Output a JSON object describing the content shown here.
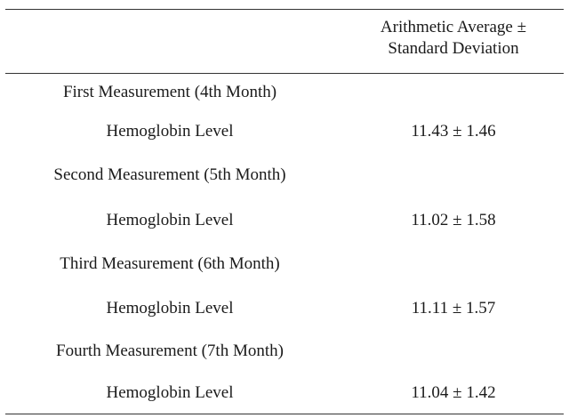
{
  "table": {
    "header": {
      "line1": "Arithmetic Average ±",
      "line2": "Standard Deviation"
    },
    "groups": [
      {
        "label": "First Measurement (4th Month)",
        "item": "Hemoglobin Level",
        "value": "11.43 ± 1.46"
      },
      {
        "label": "Second Measurement (5th Month)",
        "item": "Hemoglobin Level",
        "value": "11.02 ± 1.58"
      },
      {
        "label": "Third Measurement (6th Month)",
        "item": "Hemoglobin Level",
        "value": "11.11 ± 1.57"
      },
      {
        "label": "Fourth Measurement (7th Month)",
        "item": "Hemoglobin Level",
        "value": "11.04 ± 1.42"
      }
    ]
  }
}
